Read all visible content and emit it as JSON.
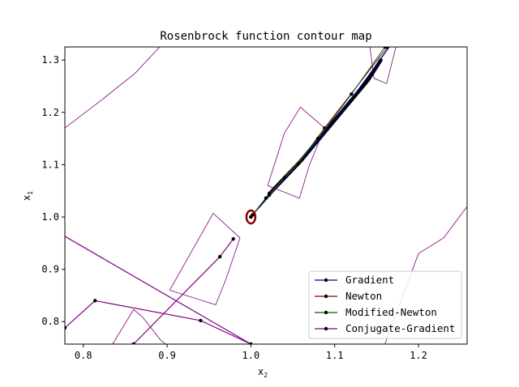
{
  "chart_data": {
    "type": "line",
    "title": "Rosenbrock function contour map",
    "xlabel_base": "x",
    "xlabel_sub": "2",
    "ylabel_base": "x",
    "ylabel_sub": "1",
    "xlim": [
      0.778,
      1.258
    ],
    "ylim": [
      0.757,
      1.325
    ],
    "xticks": [
      0.8,
      0.9,
      1.0,
      1.1,
      1.2
    ],
    "xtick_labels": [
      "0.8",
      "0.9",
      "1.0",
      "1.1",
      "1.2"
    ],
    "yticks": [
      0.8,
      0.9,
      1.0,
      1.1,
      1.2,
      1.3
    ],
    "ytick_labels": [
      "0.8",
      "0.9",
      "1.0",
      "1.1",
      "1.2",
      "1.3"
    ],
    "grid": false,
    "legend_position": "lower-right",
    "contours": [
      {
        "color": "#800080",
        "points": [
          [
            0.778,
            1.17
          ],
          [
            0.823,
            1.225
          ],
          [
            0.862,
            1.275
          ],
          [
            0.891,
            1.325
          ]
        ]
      },
      {
        "color": "#800080",
        "points": [
          [
            1.142,
            1.325
          ],
          [
            1.147,
            1.265
          ],
          [
            1.162,
            1.255
          ],
          [
            1.173,
            1.325
          ]
        ]
      },
      {
        "color": "#800080",
        "points": [
          [
            1.02,
            1.06
          ],
          [
            1.04,
            1.16
          ],
          [
            1.059,
            1.21
          ],
          [
            1.088,
            1.17
          ],
          [
            1.07,
            1.1
          ],
          [
            1.058,
            1.036
          ],
          [
            1.02,
            1.06
          ]
        ]
      },
      {
        "color": "#800080",
        "points": [
          [
            0.903,
            0.86
          ],
          [
            0.955,
            1.007
          ],
          [
            0.987,
            0.96
          ],
          [
            0.97,
            0.88
          ],
          [
            0.958,
            0.832
          ],
          [
            0.903,
            0.86
          ]
        ]
      },
      {
        "color": "#800080",
        "points": [
          [
            0.835,
            0.757
          ],
          [
            0.86,
            0.823
          ],
          [
            0.87,
            0.81
          ],
          [
            0.892,
            0.765
          ],
          [
            0.898,
            0.757
          ]
        ]
      },
      {
        "color": "#800080",
        "points": [
          [
            1.16,
            0.757
          ],
          [
            1.2,
            0.93
          ],
          [
            1.23,
            0.96
          ],
          [
            1.258,
            1.02
          ]
        ]
      }
    ],
    "series": [
      {
        "name": "Gradient",
        "color": "#00008b",
        "line_width": 1.3,
        "marker": "none",
        "points": [
          [
            1.0,
            1.0
          ],
          [
            1.002,
            1.005
          ],
          [
            1.005,
            1.01
          ],
          [
            1.012,
            1.022
          ],
          [
            1.025,
            1.046
          ],
          [
            1.04,
            1.072
          ],
          [
            1.06,
            1.108
          ],
          [
            1.08,
            1.145
          ],
          [
            1.1,
            1.185
          ],
          [
            1.12,
            1.226
          ],
          [
            1.14,
            1.269
          ],
          [
            1.165,
            1.325
          ]
        ]
      },
      {
        "name": "Newton",
        "color": "#8b0000",
        "line_width": 1.0,
        "marker": "dot",
        "points": [
          [
            1.163,
            1.325
          ],
          [
            1.088,
            1.17
          ],
          [
            1.056,
            1.101
          ],
          [
            1.022,
            1.045
          ],
          [
            1.002,
            1.004
          ],
          [
            1.0,
            1.0
          ]
        ]
      },
      {
        "name": "Modified-Newton",
        "color": "#006400",
        "line_width": 1.0,
        "marker": "dot",
        "points": [
          [
            1.16,
            1.325
          ],
          [
            1.12,
            1.235
          ],
          [
            1.08,
            1.15
          ],
          [
            1.04,
            1.075
          ],
          [
            1.022,
            1.042
          ],
          [
            1.018,
            1.036
          ],
          [
            1.002,
            1.004
          ],
          [
            1.0,
            1.0
          ]
        ]
      },
      {
        "name": "Conjugate-Gradient",
        "color": "#800080",
        "line_width": 1.2,
        "marker": "dot",
        "points": [
          [
            0.86,
            0.757
          ],
          [
            0.963,
            0.924
          ],
          [
            0.979,
            0.958
          ]
        ]
      }
    ],
    "extra_lines": [
      {
        "color": "#800080",
        "line_width": 1.2,
        "marker": "none",
        "points": [
          [
            0.778,
            0.963
          ],
          [
            1.0,
            0.757
          ]
        ]
      },
      {
        "color": "#800080",
        "line_width": 1.2,
        "marker": "dot",
        "points": [
          [
            0.778,
            0.788
          ],
          [
            0.814,
            0.84
          ],
          [
            0.94,
            0.802
          ],
          [
            1.0,
            0.757
          ]
        ]
      }
    ],
    "thick_band": {
      "color": "#000000",
      "line_width": 4.5,
      "points": [
        [
          1.022,
          1.044
        ],
        [
          1.06,
          1.108
        ],
        [
          1.1,
          1.185
        ],
        [
          1.14,
          1.262
        ],
        [
          1.155,
          1.3
        ]
      ]
    },
    "minimum_marker": {
      "x": 1.0,
      "y": 1.0,
      "color": "#8b0000",
      "rx": 5.5,
      "ry": 8
    }
  }
}
